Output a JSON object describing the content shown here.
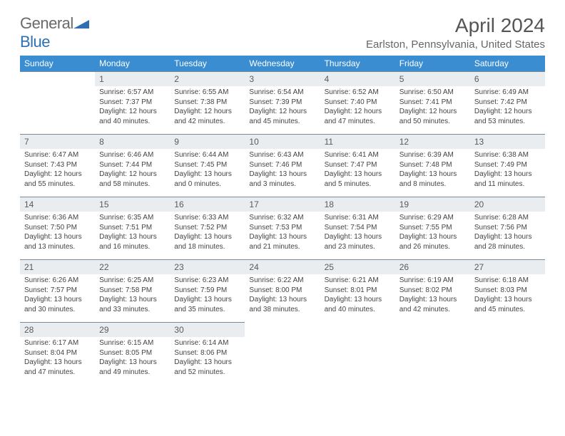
{
  "logo": {
    "word1": "General",
    "word2": "Blue",
    "text_color": "#6a6a6a",
    "accent_color": "#2f6fb2"
  },
  "title": "April 2024",
  "location": "Earlston, Pennsylvania, United States",
  "colors": {
    "header_bg": "#3a8dd0",
    "header_text": "#ffffff",
    "daynum_bg": "#e9edf0",
    "border": "#7a899a",
    "body_text": "#444444"
  },
  "day_headers": [
    "Sunday",
    "Monday",
    "Tuesday",
    "Wednesday",
    "Thursday",
    "Friday",
    "Saturday"
  ],
  "weeks": [
    [
      {
        "num": "",
        "sunrise": "",
        "sunset": "",
        "daylight": ""
      },
      {
        "num": "1",
        "sunrise": "Sunrise: 6:57 AM",
        "sunset": "Sunset: 7:37 PM",
        "daylight": "Daylight: 12 hours and 40 minutes."
      },
      {
        "num": "2",
        "sunrise": "Sunrise: 6:55 AM",
        "sunset": "Sunset: 7:38 PM",
        "daylight": "Daylight: 12 hours and 42 minutes."
      },
      {
        "num": "3",
        "sunrise": "Sunrise: 6:54 AM",
        "sunset": "Sunset: 7:39 PM",
        "daylight": "Daylight: 12 hours and 45 minutes."
      },
      {
        "num": "4",
        "sunrise": "Sunrise: 6:52 AM",
        "sunset": "Sunset: 7:40 PM",
        "daylight": "Daylight: 12 hours and 47 minutes."
      },
      {
        "num": "5",
        "sunrise": "Sunrise: 6:50 AM",
        "sunset": "Sunset: 7:41 PM",
        "daylight": "Daylight: 12 hours and 50 minutes."
      },
      {
        "num": "6",
        "sunrise": "Sunrise: 6:49 AM",
        "sunset": "Sunset: 7:42 PM",
        "daylight": "Daylight: 12 hours and 53 minutes."
      }
    ],
    [
      {
        "num": "7",
        "sunrise": "Sunrise: 6:47 AM",
        "sunset": "Sunset: 7:43 PM",
        "daylight": "Daylight: 12 hours and 55 minutes."
      },
      {
        "num": "8",
        "sunrise": "Sunrise: 6:46 AM",
        "sunset": "Sunset: 7:44 PM",
        "daylight": "Daylight: 12 hours and 58 minutes."
      },
      {
        "num": "9",
        "sunrise": "Sunrise: 6:44 AM",
        "sunset": "Sunset: 7:45 PM",
        "daylight": "Daylight: 13 hours and 0 minutes."
      },
      {
        "num": "10",
        "sunrise": "Sunrise: 6:43 AM",
        "sunset": "Sunset: 7:46 PM",
        "daylight": "Daylight: 13 hours and 3 minutes."
      },
      {
        "num": "11",
        "sunrise": "Sunrise: 6:41 AM",
        "sunset": "Sunset: 7:47 PM",
        "daylight": "Daylight: 13 hours and 5 minutes."
      },
      {
        "num": "12",
        "sunrise": "Sunrise: 6:39 AM",
        "sunset": "Sunset: 7:48 PM",
        "daylight": "Daylight: 13 hours and 8 minutes."
      },
      {
        "num": "13",
        "sunrise": "Sunrise: 6:38 AM",
        "sunset": "Sunset: 7:49 PM",
        "daylight": "Daylight: 13 hours and 11 minutes."
      }
    ],
    [
      {
        "num": "14",
        "sunrise": "Sunrise: 6:36 AM",
        "sunset": "Sunset: 7:50 PM",
        "daylight": "Daylight: 13 hours and 13 minutes."
      },
      {
        "num": "15",
        "sunrise": "Sunrise: 6:35 AM",
        "sunset": "Sunset: 7:51 PM",
        "daylight": "Daylight: 13 hours and 16 minutes."
      },
      {
        "num": "16",
        "sunrise": "Sunrise: 6:33 AM",
        "sunset": "Sunset: 7:52 PM",
        "daylight": "Daylight: 13 hours and 18 minutes."
      },
      {
        "num": "17",
        "sunrise": "Sunrise: 6:32 AM",
        "sunset": "Sunset: 7:53 PM",
        "daylight": "Daylight: 13 hours and 21 minutes."
      },
      {
        "num": "18",
        "sunrise": "Sunrise: 6:31 AM",
        "sunset": "Sunset: 7:54 PM",
        "daylight": "Daylight: 13 hours and 23 minutes."
      },
      {
        "num": "19",
        "sunrise": "Sunrise: 6:29 AM",
        "sunset": "Sunset: 7:55 PM",
        "daylight": "Daylight: 13 hours and 26 minutes."
      },
      {
        "num": "20",
        "sunrise": "Sunrise: 6:28 AM",
        "sunset": "Sunset: 7:56 PM",
        "daylight": "Daylight: 13 hours and 28 minutes."
      }
    ],
    [
      {
        "num": "21",
        "sunrise": "Sunrise: 6:26 AM",
        "sunset": "Sunset: 7:57 PM",
        "daylight": "Daylight: 13 hours and 30 minutes."
      },
      {
        "num": "22",
        "sunrise": "Sunrise: 6:25 AM",
        "sunset": "Sunset: 7:58 PM",
        "daylight": "Daylight: 13 hours and 33 minutes."
      },
      {
        "num": "23",
        "sunrise": "Sunrise: 6:23 AM",
        "sunset": "Sunset: 7:59 PM",
        "daylight": "Daylight: 13 hours and 35 minutes."
      },
      {
        "num": "24",
        "sunrise": "Sunrise: 6:22 AM",
        "sunset": "Sunset: 8:00 PM",
        "daylight": "Daylight: 13 hours and 38 minutes."
      },
      {
        "num": "25",
        "sunrise": "Sunrise: 6:21 AM",
        "sunset": "Sunset: 8:01 PM",
        "daylight": "Daylight: 13 hours and 40 minutes."
      },
      {
        "num": "26",
        "sunrise": "Sunrise: 6:19 AM",
        "sunset": "Sunset: 8:02 PM",
        "daylight": "Daylight: 13 hours and 42 minutes."
      },
      {
        "num": "27",
        "sunrise": "Sunrise: 6:18 AM",
        "sunset": "Sunset: 8:03 PM",
        "daylight": "Daylight: 13 hours and 45 minutes."
      }
    ],
    [
      {
        "num": "28",
        "sunrise": "Sunrise: 6:17 AM",
        "sunset": "Sunset: 8:04 PM",
        "daylight": "Daylight: 13 hours and 47 minutes."
      },
      {
        "num": "29",
        "sunrise": "Sunrise: 6:15 AM",
        "sunset": "Sunset: 8:05 PM",
        "daylight": "Daylight: 13 hours and 49 minutes."
      },
      {
        "num": "30",
        "sunrise": "Sunrise: 6:14 AM",
        "sunset": "Sunset: 8:06 PM",
        "daylight": "Daylight: 13 hours and 52 minutes."
      },
      {
        "num": "",
        "sunrise": "",
        "sunset": "",
        "daylight": ""
      },
      {
        "num": "",
        "sunrise": "",
        "sunset": "",
        "daylight": ""
      },
      {
        "num": "",
        "sunrise": "",
        "sunset": "",
        "daylight": ""
      },
      {
        "num": "",
        "sunrise": "",
        "sunset": "",
        "daylight": ""
      }
    ]
  ]
}
